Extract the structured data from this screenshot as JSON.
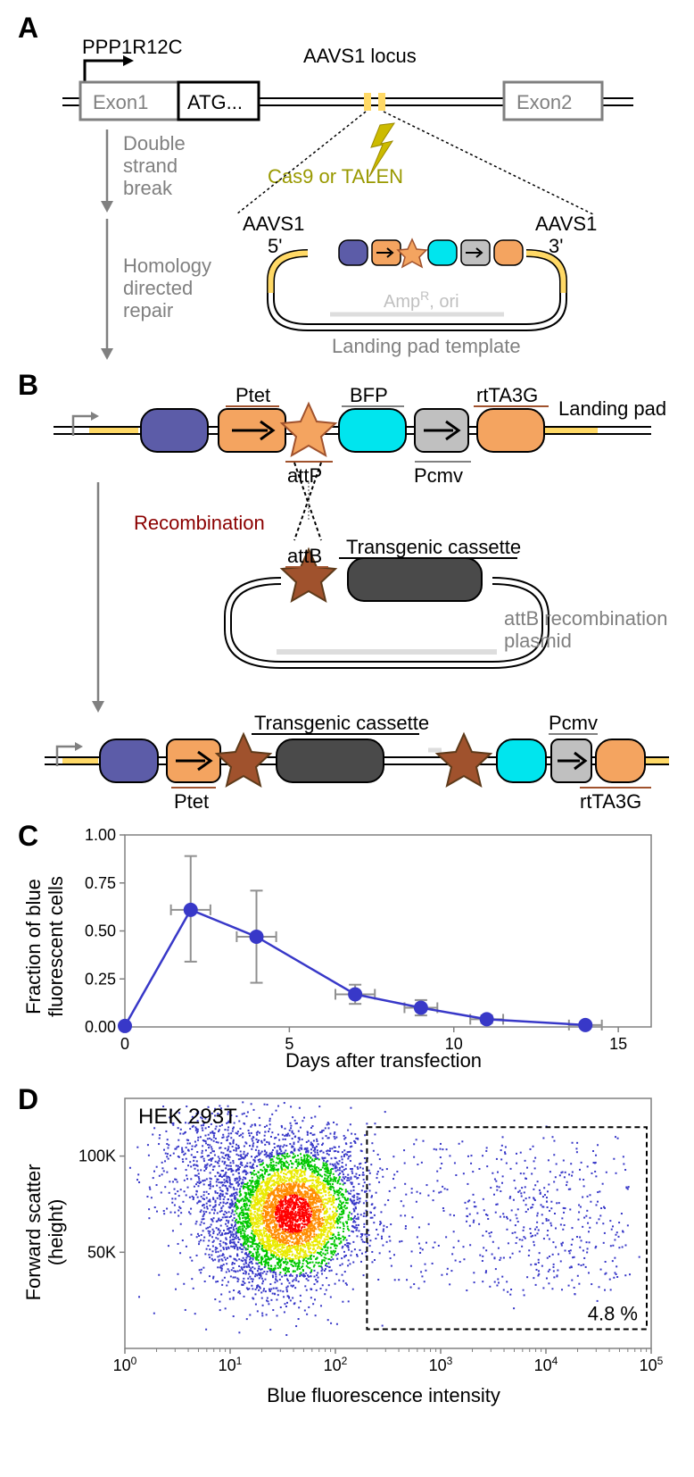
{
  "panelA": {
    "label": "A",
    "gene_name": "PPP1R12C",
    "locus_name": "AAVS1 locus",
    "exon1": "Exon1",
    "atg": "ATG...",
    "exon2": "Exon2",
    "dsb": "Double\nstrand\nbreak",
    "hdr": "Homology\ndirected\nrepair",
    "nuclease": "Cas9 or TALEN",
    "aavs1_5": "AAVS1\n5'",
    "aavs1_3": "AAVS1\n3'",
    "amp": "AmpR, ori",
    "template_label": "Landing pad template",
    "colors": {
      "exon_border": "#808080",
      "exon_fill": "#ffffff",
      "text_gray": "#808080",
      "text_black": "#000000",
      "nuclease_color": "#aaaa00",
      "homology_color": "#ffd966",
      "cassette_purple": "#5c5ca8",
      "cassette_orange": "#f4a460",
      "cassette_cyan": "#00e5ee",
      "cassette_gray": "#c0c0c0",
      "star_orange": "#d2691e"
    }
  },
  "panelB": {
    "label": "B",
    "ptet": "Ptet",
    "bfp": "BFP",
    "rtTA3G": "rtTA3G",
    "landing_pad": "Landing pad",
    "attP": "attP",
    "pcmv": "Pcmv",
    "recombination": "Recombination",
    "attB": "attB",
    "transgenic": "Transgenic cassette",
    "plasmid_label": "attB recombination\nplasmid",
    "colors": {
      "recomb_color": "#8b0000",
      "star_dark": "#a0522d",
      "dark_gray": "#4a4a4a"
    }
  },
  "panelC": {
    "label": "C",
    "type": "line",
    "xlabel": "Days after transfection",
    "ylabel": "Fraction of blue\nfluorescent cells",
    "xlim": [
      0,
      16
    ],
    "ylim": [
      0,
      1.0
    ],
    "xticks": [
      0,
      5,
      10,
      15
    ],
    "yticks": [
      0.0,
      0.25,
      0.5,
      0.75,
      1.0
    ],
    "data": {
      "x": [
        0,
        2,
        4,
        7,
        9,
        11,
        14
      ],
      "y": [
        0.005,
        0.61,
        0.47,
        0.17,
        0.1,
        0.04,
        0.01
      ],
      "err_low": [
        0.005,
        0.34,
        0.23,
        0.12,
        0.06,
        0.02,
        0.005
      ],
      "err_high": [
        0.005,
        0.89,
        0.71,
        0.22,
        0.14,
        0.06,
        0.015
      ],
      "xerr": [
        0,
        0.6,
        0.6,
        0.6,
        0.5,
        0.5,
        0.5
      ]
    },
    "line_color": "#3838c8",
    "marker_color": "#3838c8",
    "marker_size": 8,
    "error_color": "#909090",
    "label_fontsize": 22,
    "tick_fontsize": 18,
    "axis_color": "#808080"
  },
  "panelD": {
    "label": "D",
    "type": "scatter",
    "cell_type": "HEK 293T",
    "gate_pct": "4.8 %",
    "xlabel": "Blue fluorescence intensity",
    "ylabel": "Forward scatter\n(height)",
    "xlim_log": [
      0,
      5
    ],
    "ylim": [
      0,
      130000
    ],
    "xticks_log": [
      0,
      1,
      2,
      3,
      4,
      5
    ],
    "yticks": [
      50000,
      100000
    ],
    "ytick_labels": [
      "50K",
      "100K"
    ],
    "label_fontsize": 22,
    "tick_fontsize": 18,
    "axis_color": "#808080",
    "density_colors": [
      "#3838c8",
      "#00c800",
      "#eaea00",
      "#ff8c00",
      "#ff0000"
    ],
    "gate_x": 2.3,
    "gate_y_low": 10000,
    "gate_y_high": 115000
  }
}
